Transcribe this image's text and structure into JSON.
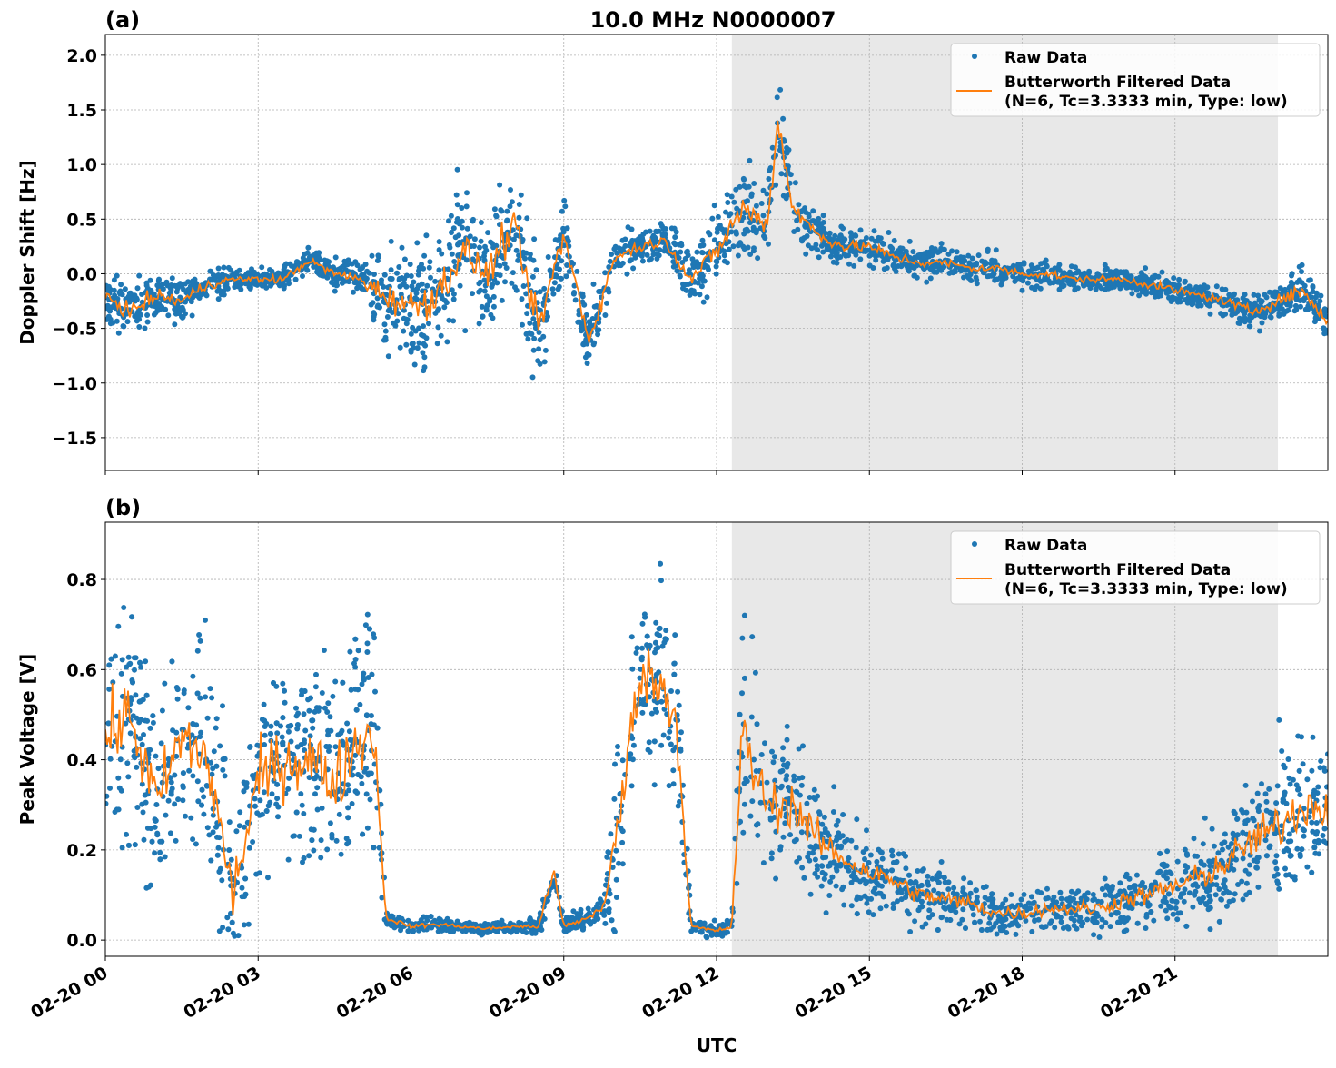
{
  "title": "10.0 MHz N0000007",
  "colors": {
    "raw": "#1f77b4",
    "filtered": "#ff7f0e",
    "shade": "#e8e8e8",
    "grid": "#b0b0b0"
  },
  "legend": {
    "raw_label": "Raw Data",
    "filtered_label_line1": "Butterworth Filtered Data",
    "filtered_label_line2": "(N=6, Tc=3.3333 min, Type: low)",
    "placement": "top-right"
  },
  "xlabel": "UTC",
  "chart_data": [
    {
      "type": "scatter+line",
      "panel_label": "(a)",
      "ylabel": "Doppler Shift [Hz]",
      "xlim_hours": [
        0,
        24
      ],
      "ylim": [
        -1.8,
        2.19
      ],
      "grid": true,
      "shaded_span_hours": [
        12.3,
        23.02
      ],
      "x_ticks": [
        "02-20 00",
        "02-20 03",
        "02-20 06",
        "02-20 09",
        "02-20 12",
        "02-20 15",
        "02-20 18",
        "02-20 21"
      ],
      "x_tick_hours": [
        0,
        3,
        6,
        9,
        12,
        15,
        18,
        21
      ],
      "y_ticks": [
        -1.5,
        -1.0,
        -0.5,
        0.0,
        0.5,
        1.0,
        1.5,
        2.0
      ],
      "y_tick_labels": [
        "−1.5",
        "−1.0",
        "−0.5",
        "0.0",
        "0.5",
        "1.0",
        "1.5",
        "2.0"
      ],
      "x_hours": [
        0,
        0.5,
        1,
        1.5,
        2,
        2.5,
        3,
        3.5,
        4,
        4.5,
        5,
        5.5,
        6,
        6.5,
        7,
        7.5,
        8,
        8.5,
        9,
        9.5,
        10,
        10.5,
        11,
        11.5,
        12,
        12.5,
        13,
        13.2,
        13.5,
        14,
        14.5,
        15,
        15.5,
        16,
        16.5,
        17,
        17.5,
        18,
        18.5,
        19,
        19.5,
        20,
        20.5,
        21,
        21.5,
        22,
        22.5,
        23,
        23.5,
        24
      ],
      "filtered": [
        -0.2,
        -0.35,
        -0.2,
        -0.25,
        -0.1,
        -0.05,
        -0.05,
        -0.05,
        0.12,
        0.0,
        -0.05,
        -0.2,
        -0.3,
        -0.2,
        0.2,
        0.0,
        0.45,
        -0.5,
        0.35,
        -0.6,
        0.15,
        0.25,
        0.3,
        -0.05,
        0.2,
        0.6,
        0.45,
        1.4,
        0.6,
        0.35,
        0.25,
        0.25,
        0.15,
        0.1,
        0.1,
        0.05,
        0.05,
        0.0,
        0.0,
        -0.05,
        -0.05,
        -0.05,
        -0.1,
        -0.15,
        -0.2,
        -0.25,
        -0.35,
        -0.25,
        -0.15,
        -0.45
      ],
      "raw_spread": [
        0.25,
        0.3,
        0.25,
        0.25,
        0.2,
        0.12,
        0.12,
        0.15,
        0.12,
        0.15,
        0.2,
        0.5,
        0.6,
        0.7,
        0.7,
        0.6,
        0.7,
        0.6,
        0.5,
        0.4,
        0.25,
        0.2,
        0.2,
        0.3,
        0.4,
        0.5,
        0.45,
        0.5,
        0.4,
        0.25,
        0.2,
        0.2,
        0.18,
        0.18,
        0.15,
        0.15,
        0.15,
        0.15,
        0.15,
        0.12,
        0.12,
        0.12,
        0.15,
        0.15,
        0.15,
        0.15,
        0.2,
        0.2,
        0.25,
        0.25
      ]
    },
    {
      "type": "scatter+line",
      "panel_label": "(b)",
      "ylabel": "Peak Voltage [V]",
      "xlim_hours": [
        0,
        24
      ],
      "ylim": [
        -0.036,
        0.927
      ],
      "grid": true,
      "shaded_span_hours": [
        12.3,
        23.02
      ],
      "x_ticks": [
        "02-20 00",
        "02-20 03",
        "02-20 06",
        "02-20 09",
        "02-20 12",
        "02-20 15",
        "02-20 18",
        "02-20 21"
      ],
      "x_tick_hours": [
        0,
        3,
        6,
        9,
        12,
        15,
        18,
        21
      ],
      "y_ticks": [
        0.0,
        0.2,
        0.4,
        0.6,
        0.8
      ],
      "y_tick_labels": [
        "0.0",
        "0.2",
        "0.4",
        "0.6",
        "0.8"
      ],
      "x_hours": [
        0,
        0.5,
        1,
        1.5,
        2,
        2.5,
        3,
        3.5,
        4,
        4.5,
        5,
        5.3,
        5.5,
        6,
        6.5,
        7,
        7.5,
        8,
        8.5,
        8.8,
        9,
        9.5,
        9.8,
        10,
        10.5,
        11,
        11.2,
        11.5,
        12,
        12.3,
        12.5,
        13,
        13.5,
        14,
        14.5,
        15,
        15.5,
        16,
        16.5,
        17,
        17.5,
        18,
        18.5,
        19,
        19.5,
        20,
        20.5,
        21,
        21.5,
        22,
        22.5,
        23,
        23.5,
        24
      ],
      "filtered": [
        0.45,
        0.5,
        0.3,
        0.45,
        0.4,
        0.1,
        0.35,
        0.4,
        0.4,
        0.35,
        0.45,
        0.45,
        0.05,
        0.03,
        0.035,
        0.03,
        0.025,
        0.03,
        0.03,
        0.15,
        0.03,
        0.05,
        0.08,
        0.2,
        0.6,
        0.55,
        0.5,
        0.03,
        0.02,
        0.03,
        0.45,
        0.3,
        0.3,
        0.22,
        0.18,
        0.15,
        0.13,
        0.1,
        0.09,
        0.08,
        0.06,
        0.06,
        0.07,
        0.07,
        0.07,
        0.09,
        0.1,
        0.12,
        0.14,
        0.17,
        0.22,
        0.25,
        0.3,
        0.3
      ],
      "raw_spread": [
        0.3,
        0.3,
        0.3,
        0.3,
        0.3,
        0.25,
        0.3,
        0.3,
        0.3,
        0.3,
        0.3,
        0.3,
        0.02,
        0.02,
        0.02,
        0.015,
        0.015,
        0.015,
        0.02,
        0.06,
        0.02,
        0.03,
        0.05,
        0.25,
        0.25,
        0.25,
        0.25,
        0.02,
        0.02,
        0.02,
        0.3,
        0.2,
        0.2,
        0.15,
        0.12,
        0.1,
        0.09,
        0.08,
        0.07,
        0.07,
        0.06,
        0.06,
        0.06,
        0.06,
        0.07,
        0.08,
        0.09,
        0.1,
        0.12,
        0.14,
        0.16,
        0.2,
        0.22,
        0.2
      ]
    }
  ]
}
